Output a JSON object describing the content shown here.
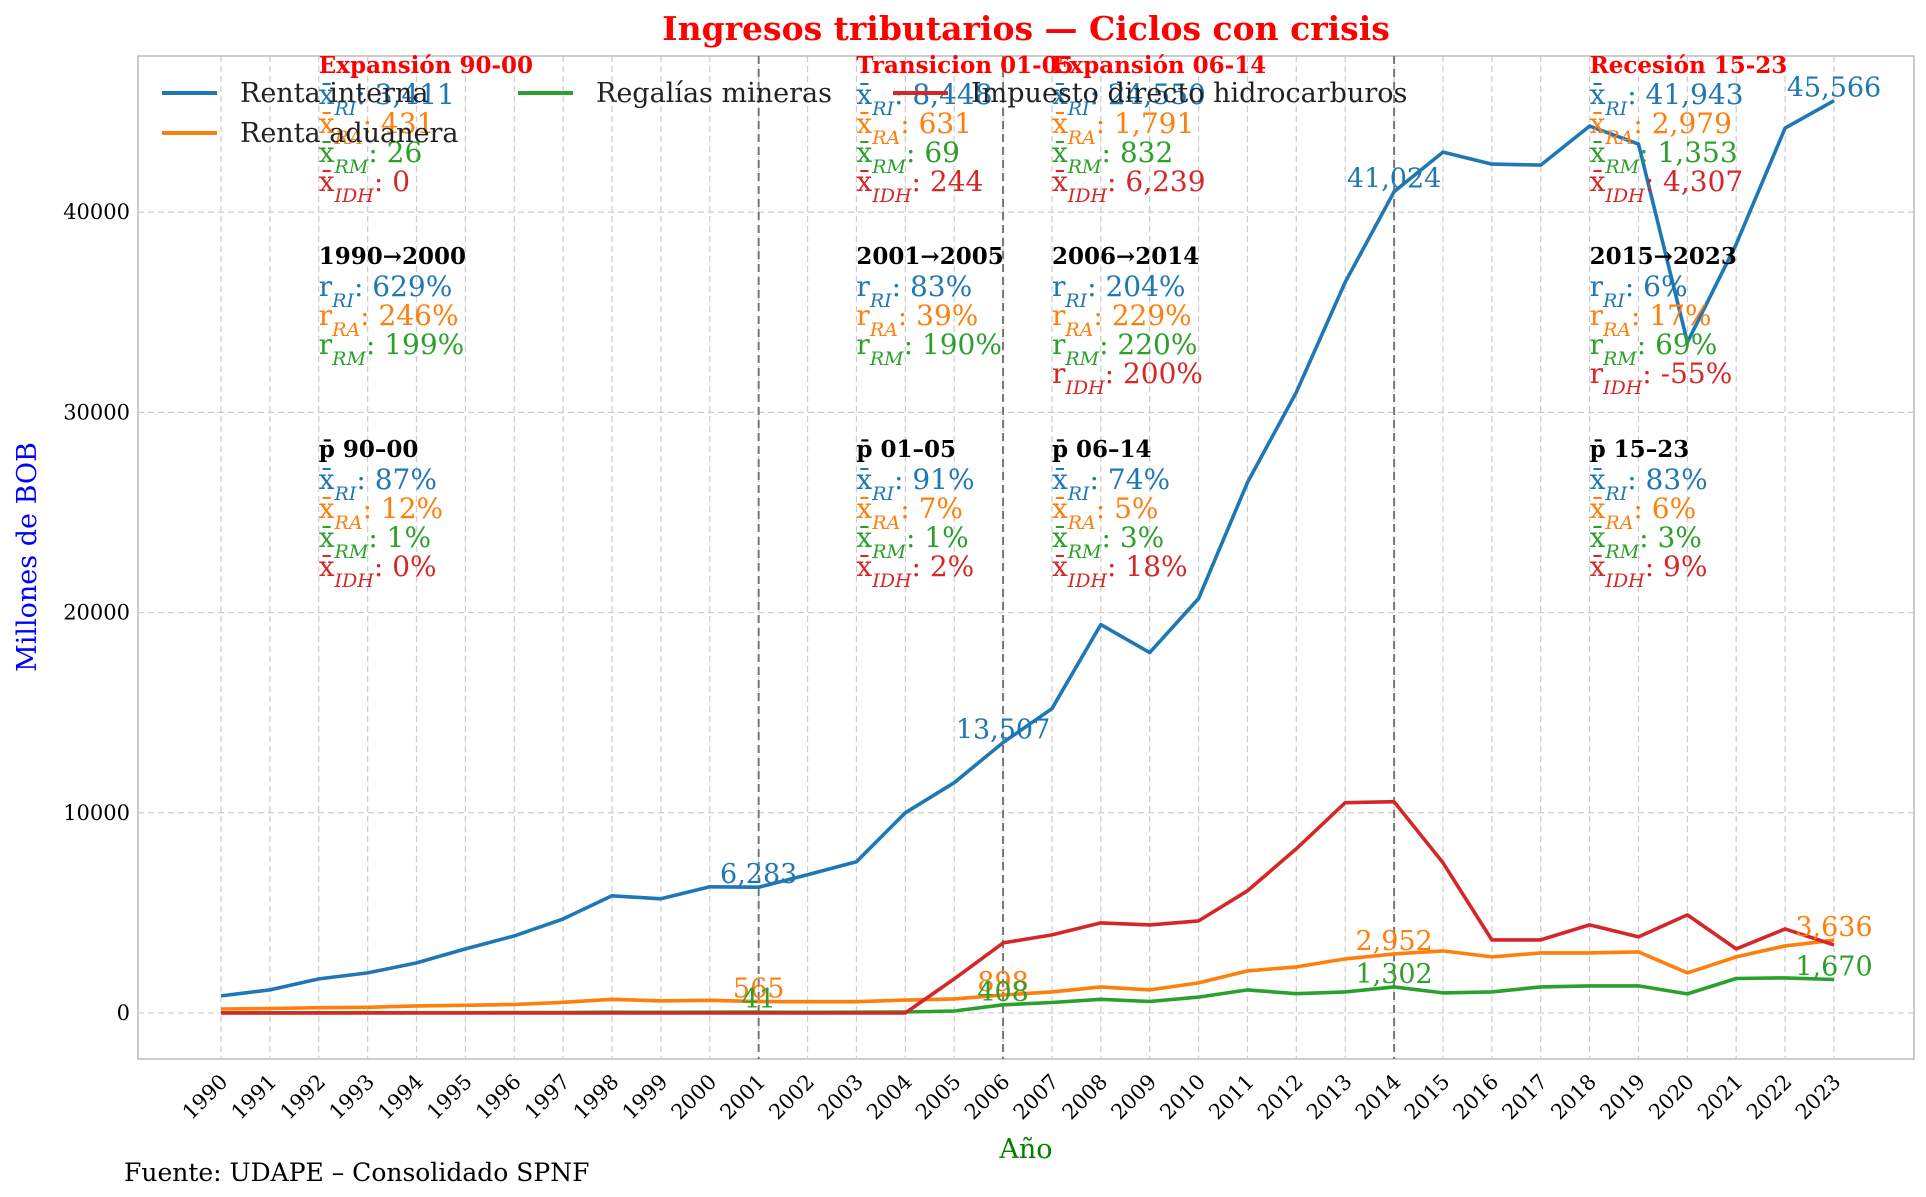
{
  "chart_data": {
    "type": "line",
    "title": "Ingresos tributarios — Ciclos con crisis",
    "xlabel": "Año",
    "ylabel": "Millones de BOB",
    "ylim": [
      -2300,
      47800
    ],
    "yticks": [
      0,
      10000,
      20000,
      30000,
      40000
    ],
    "grid": true,
    "legend_position": "top-left",
    "colors": {
      "title": "#ff0000",
      "ylabel": "#0000ff",
      "xlabel": "#008000"
    },
    "x": [
      1990,
      1991,
      1992,
      1993,
      1994,
      1995,
      1996,
      1997,
      1998,
      1999,
      2000,
      2001,
      2002,
      2003,
      2004,
      2005,
      2006,
      2007,
      2008,
      2009,
      2010,
      2011,
      2012,
      2013,
      2014,
      2015,
      2016,
      2017,
      2018,
      2019,
      2020,
      2021,
      2022,
      2023
    ],
    "series": [
      {
        "name": "Renta interna",
        "color": "#1f77b4",
        "values": [
          850,
          1150,
          1700,
          2000,
          2500,
          3200,
          3850,
          4700,
          5850,
          5700,
          6300,
          6283,
          6900,
          7550,
          10000,
          11500,
          13507,
          15200,
          19400,
          18000,
          20700,
          26500,
          31000,
          36500,
          41024,
          43000,
          42400,
          42350,
          44300,
          43400,
          33500,
          38400,
          44200,
          45566
        ]
      },
      {
        "name": "Renta aduanera",
        "color": "#ff7f0e",
        "values": [
          200,
          220,
          260,
          280,
          350,
          380,
          420,
          530,
          680,
          600,
          630,
          565,
          560,
          560,
          640,
          700,
          898,
          1050,
          1300,
          1150,
          1500,
          2100,
          2300,
          2700,
          2952,
          3100,
          2800,
          3000,
          3000,
          3050,
          2000,
          2800,
          3350,
          3636
        ]
      },
      {
        "name": "Regalías mineras",
        "color": "#2ca02c",
        "values": [
          10,
          10,
          10,
          12,
          15,
          15,
          18,
          20,
          40,
          35,
          40,
          41,
          35,
          38,
          50,
          100,
          408,
          520,
          680,
          570,
          790,
          1150,
          960,
          1050,
          1302,
          1000,
          1050,
          1300,
          1350,
          1350,
          950,
          1720,
          1750,
          1670
        ]
      },
      {
        "name": "Impuesto directo hidrocarburos",
        "color": "#d62728",
        "values": [
          0,
          0,
          0,
          0,
          0,
          0,
          0,
          0,
          0,
          0,
          0,
          0,
          0,
          0,
          0,
          1700,
          3500,
          3900,
          4500,
          4400,
          4600,
          6100,
          8200,
          10500,
          10550,
          7500,
          3650,
          3650,
          4400,
          3800,
          4900,
          3200,
          4200,
          3400
        ]
      }
    ],
    "point_labels": [
      {
        "series": 0,
        "year": 2001,
        "text": "6,283"
      },
      {
        "series": 0,
        "year": 2006,
        "text": "13,507"
      },
      {
        "series": 0,
        "year": 2014,
        "text": "41,024"
      },
      {
        "series": 0,
        "year": 2023,
        "text": "45,566"
      },
      {
        "series": 1,
        "year": 2001,
        "text": "565"
      },
      {
        "series": 1,
        "year": 2006,
        "text": "898"
      },
      {
        "series": 1,
        "year": 2014,
        "text": "2,952"
      },
      {
        "series": 1,
        "year": 2023,
        "text": "3,636"
      },
      {
        "series": 2,
        "year": 2001,
        "text": "41"
      },
      {
        "series": 2,
        "year": 2006,
        "text": "408"
      },
      {
        "series": 2,
        "year": 2014,
        "text": "1,302"
      },
      {
        "series": 2,
        "year": 2023,
        "text": "1,670"
      }
    ],
    "period_boundaries": [
      2001,
      2006,
      2014
    ],
    "periods": [
      {
        "label": "Expansión 90-00",
        "year": 1992,
        "means": [
          {
            "k": "RI",
            "v": "3,411"
          },
          {
            "k": "RA",
            "v": "431"
          },
          {
            "k": "RM",
            "v": "26"
          },
          {
            "k": "IDH",
            "v": "0"
          }
        ],
        "growth_title": "1990→2000",
        "growth": [
          {
            "k": "RI",
            "v": "629%"
          },
          {
            "k": "RA",
            "v": "246%"
          },
          {
            "k": "RM",
            "v": "199%"
          }
        ],
        "share_title": "p̄ 90–00",
        "shares": [
          {
            "k": "RI",
            "v": "87%"
          },
          {
            "k": "RA",
            "v": "12%"
          },
          {
            "k": "RM",
            "v": "1%"
          },
          {
            "k": "IDH",
            "v": "0%"
          }
        ]
      },
      {
        "label": "Transicion 01-05",
        "year": 2003,
        "means": [
          {
            "k": "RI",
            "v": "8,448"
          },
          {
            "k": "RA",
            "v": "631"
          },
          {
            "k": "RM",
            "v": "69"
          },
          {
            "k": "IDH",
            "v": "244"
          }
        ],
        "growth_title": "2001→2005",
        "growth": [
          {
            "k": "RI",
            "v": "83%"
          },
          {
            "k": "RA",
            "v": "39%"
          },
          {
            "k": "RM",
            "v": "190%"
          }
        ],
        "share_title": "p̄ 01–05",
        "shares": [
          {
            "k": "RI",
            "v": "91%"
          },
          {
            "k": "RA",
            "v": "7%"
          },
          {
            "k": "RM",
            "v": "1%"
          },
          {
            "k": "IDH",
            "v": "2%"
          }
        ]
      },
      {
        "label": "Expansión 06-14",
        "year": 2007,
        "means": [
          {
            "k": "RI",
            "v": "24,550"
          },
          {
            "k": "RA",
            "v": "1,791"
          },
          {
            "k": "RM",
            "v": "832"
          },
          {
            "k": "IDH",
            "v": "6,239"
          }
        ],
        "growth_title": "2006→2014",
        "growth": [
          {
            "k": "RI",
            "v": "204%"
          },
          {
            "k": "RA",
            "v": "229%"
          },
          {
            "k": "RM",
            "v": "220%"
          },
          {
            "k": "IDH",
            "v": "200%"
          }
        ],
        "share_title": "p̄ 06–14",
        "shares": [
          {
            "k": "RI",
            "v": "74%"
          },
          {
            "k": "RA",
            "v": "5%"
          },
          {
            "k": "RM",
            "v": "3%"
          },
          {
            "k": "IDH",
            "v": "18%"
          }
        ]
      },
      {
        "label": "Recesión 15-23",
        "year": 2018,
        "means": [
          {
            "k": "RI",
            "v": "41,943"
          },
          {
            "k": "RA",
            "v": "2,979"
          },
          {
            "k": "RM",
            "v": "1,353"
          },
          {
            "k": "IDH",
            "v": "4,307"
          }
        ],
        "growth_title": "2015→2023",
        "growth": [
          {
            "k": "RI",
            "v": "6%"
          },
          {
            "k": "RA",
            "v": "17%"
          },
          {
            "k": "RM",
            "v": "69%"
          },
          {
            "k": "IDH",
            "v": "-55%"
          }
        ],
        "share_title": "p̄ 15–23",
        "shares": [
          {
            "k": "RI",
            "v": "83%"
          },
          {
            "k": "RA",
            "v": "6%"
          },
          {
            "k": "RM",
            "v": "3%"
          },
          {
            "k": "IDH",
            "v": "9%"
          }
        ]
      }
    ],
    "source": "Fuente: UDAPE – Consolidado SPNF"
  }
}
